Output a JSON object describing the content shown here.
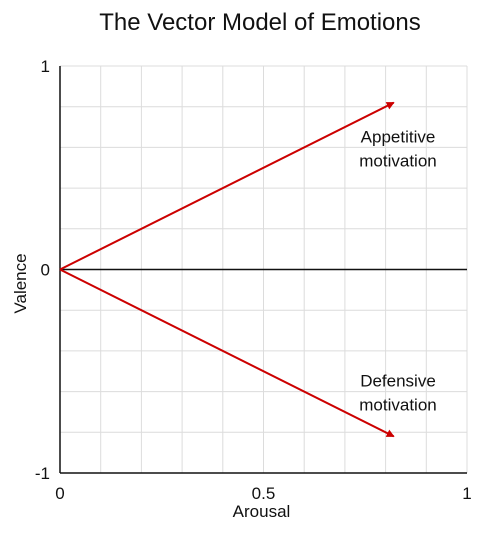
{
  "chart_data": {
    "type": "line",
    "title": "The Vector Model of Emotions",
    "xlabel": "Arousal",
    "ylabel": "Valence",
    "xlim": [
      0,
      1
    ],
    "ylim": [
      -1,
      1
    ],
    "grid": true,
    "x_ticks": [
      {
        "value": 0,
        "label": "0"
      },
      {
        "value": 0.5,
        "label": "0.5"
      },
      {
        "value": 1,
        "label": "1"
      }
    ],
    "y_ticks": [
      {
        "value": 1,
        "label": "1"
      },
      {
        "value": 0,
        "label": "0"
      },
      {
        "value": -1,
        "label": "-1"
      }
    ],
    "series_color": "#cc0000",
    "series": [
      {
        "points": [
          {
            "x": 0,
            "y": 0
          },
          {
            "x": 0.82,
            "y": 0.82
          }
        ],
        "annotation": [
          "Appetitive",
          "motivation"
        ]
      },
      {
        "points": [
          {
            "x": 0,
            "y": 0
          },
          {
            "x": 0.82,
            "y": -0.82
          }
        ],
        "annotation": [
          "Defensive",
          "motivation"
        ]
      }
    ]
  }
}
